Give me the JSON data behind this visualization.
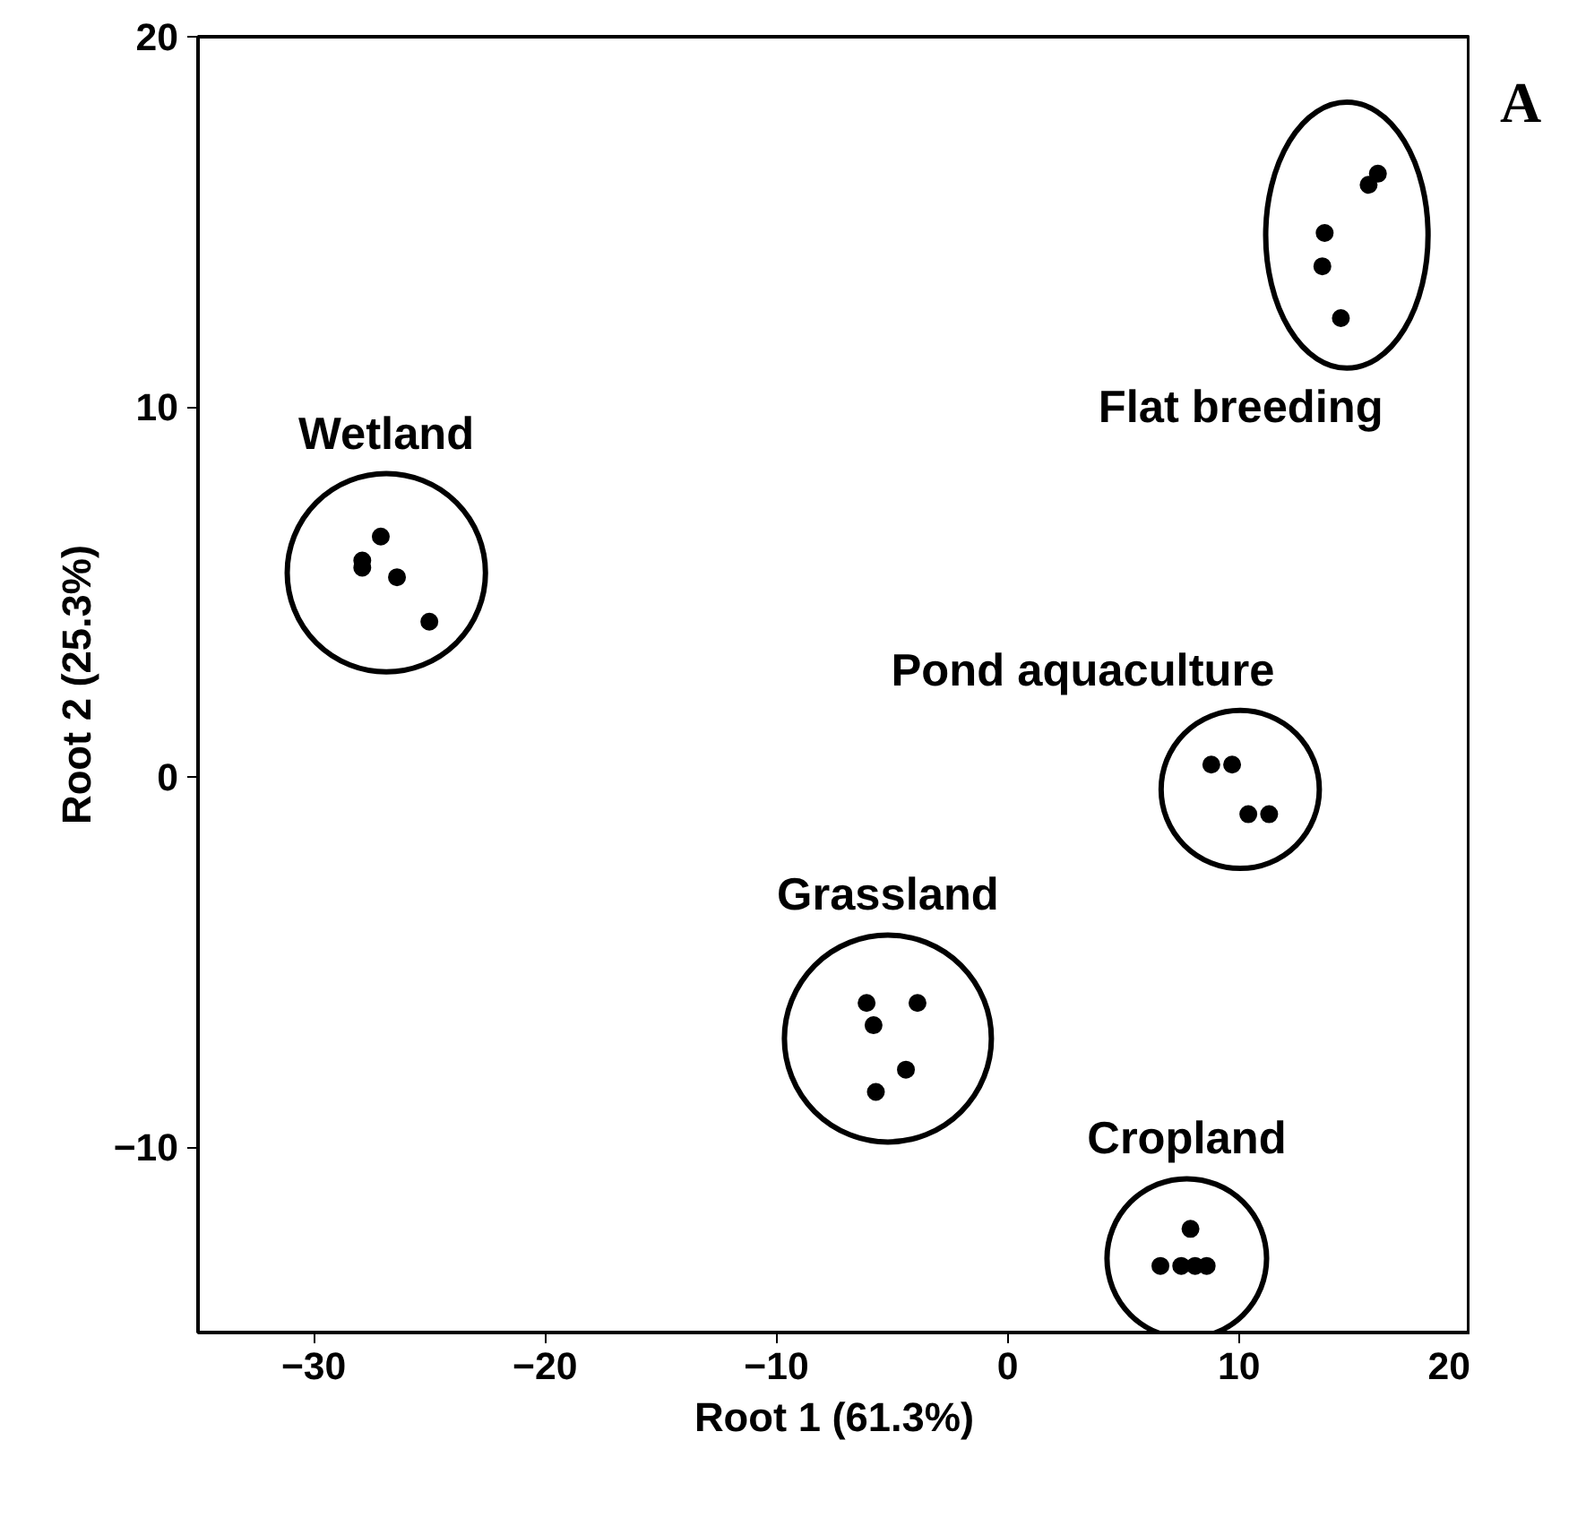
{
  "chart_data": {
    "type": "scatter",
    "xlabel": "Root 1 (61.3%)",
    "ylabel": "Root 2 (25.3%)",
    "xlim": [
      -35,
      20
    ],
    "ylim": [
      -15,
      20
    ],
    "xticks": [
      -30,
      -20,
      -10,
      0,
      10,
      20
    ],
    "yticks": [
      -10,
      0,
      10,
      20
    ],
    "grid": false,
    "marker": "circle",
    "series": [
      {
        "name": "Wetland",
        "color": "#000000",
        "x": [
          -27.1,
          -27.9,
          -27.9,
          -26.4,
          -25.0
        ],
        "values": [
          6.5,
          5.85,
          5.66,
          5.4,
          4.2
        ]
      },
      {
        "name": "Flat breeding",
        "color": "#000000",
        "x": [
          16.0,
          15.6,
          13.7,
          13.6,
          14.4
        ],
        "values": [
          16.3,
          16.0,
          14.7,
          13.8,
          12.4
        ]
      },
      {
        "name": "Pond aquaculture",
        "color": "#000000",
        "x": [
          8.8,
          9.7,
          10.4,
          11.3
        ],
        "values": [
          0.34,
          0.34,
          -1.0,
          -1.0
        ]
      },
      {
        "name": "Grassland",
        "color": "#000000",
        "x": [
          -6.1,
          -5.8,
          -3.9,
          -4.4,
          -5.7
        ],
        "values": [
          -6.1,
          -6.7,
          -6.1,
          -7.9,
          -8.5
        ]
      },
      {
        "name": "Cropland",
        "color": "#000000",
        "x": [
          6.6,
          7.9,
          7.5,
          8.1,
          8.6
        ],
        "values": [
          -13.2,
          -12.2,
          -13.2,
          -13.2,
          -13.2
        ]
      }
    ],
    "annotations": [
      "A"
    ]
  }
}
